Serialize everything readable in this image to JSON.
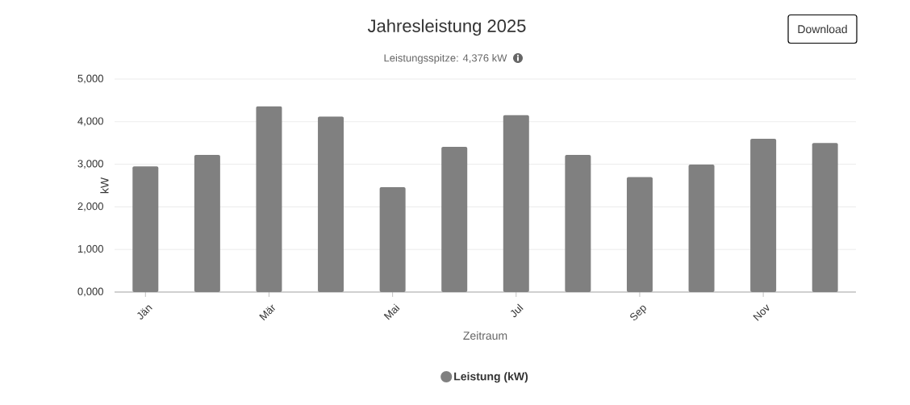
{
  "chart_data": {
    "type": "bar",
    "title": "Jahresleistung 2025",
    "subtitle": "Leistungsspitze: 4,376 kW",
    "xlabel": "Zeitraum",
    "ylabel": "kW",
    "annotations": [
      "Download"
    ],
    "categories": [
      "Jän",
      null,
      "Mär",
      null,
      "Mai",
      null,
      "Jul",
      null,
      "Sep",
      null,
      "Nov",
      null
    ],
    "series": [
      {
        "name": "Leistung (kW)",
        "color": "#808080",
        "values": [
          2950,
          3220,
          4360,
          4120,
          2460,
          3410,
          4150,
          3220,
          2700,
          2990,
          3600,
          3500
        ]
      }
    ],
    "ylim": [
      0,
      5000
    ],
    "yticks": [
      {
        "value": 0,
        "label": "0,000"
      },
      {
        "value": 1000,
        "label": "1,000"
      },
      {
        "value": 2000,
        "label": "2,000"
      },
      {
        "value": 3000,
        "label": "3,000"
      },
      {
        "value": 4000,
        "label": "4,000"
      },
      {
        "value": 5000,
        "label": "5,000"
      }
    ],
    "grid": "y",
    "legend": "bottom",
    "marker": "circle"
  }
}
